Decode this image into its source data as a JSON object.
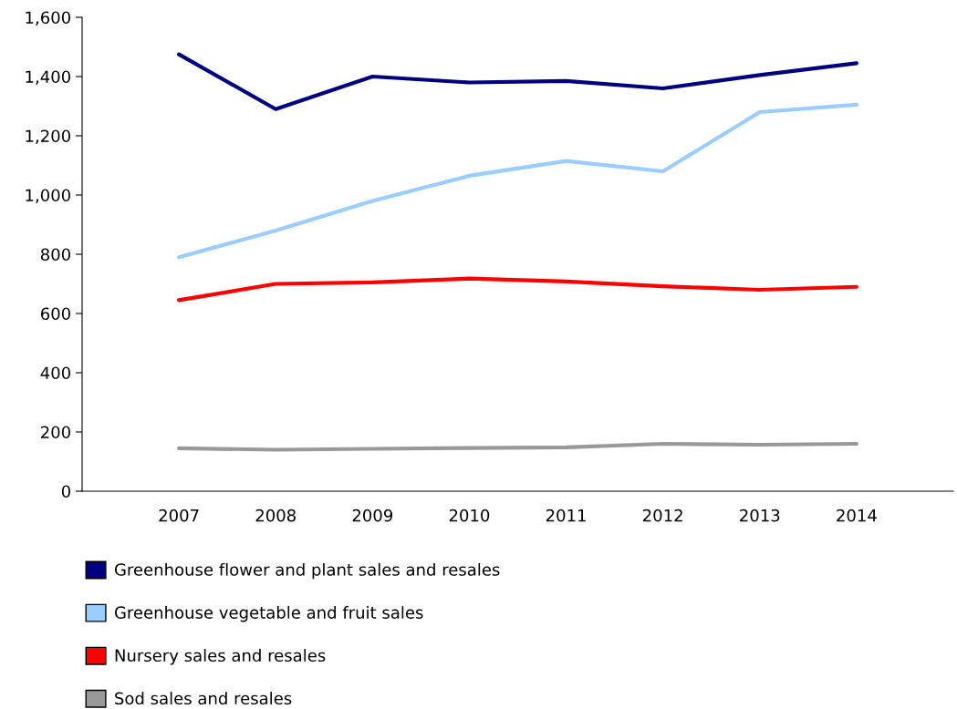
{
  "chart_data": {
    "type": "line",
    "categories": [
      "2007",
      "2008",
      "2009",
      "2010",
      "2011",
      "2012",
      "2013",
      "2014"
    ],
    "series": [
      {
        "name": "Greenhouse flower and plant sales and resales",
        "color": "#000080",
        "values": [
          1475,
          1290,
          1400,
          1380,
          1385,
          1360,
          1405,
          1445
        ]
      },
      {
        "name": "Greenhouse vegetable and fruit sales",
        "color": "#99ccff",
        "values": [
          790,
          880,
          980,
          1065,
          1115,
          1080,
          1280,
          1305
        ]
      },
      {
        "name": "Nursery sales and resales",
        "color": "#ff0000",
        "values": [
          645,
          700,
          705,
          718,
          708,
          692,
          680,
          690
        ]
      },
      {
        "name": "Sod sales and resales",
        "color": "#999999",
        "values": [
          145,
          140,
          143,
          146,
          148,
          160,
          157,
          160
        ]
      }
    ],
    "ylim": [
      0,
      1600
    ],
    "yticks": [
      {
        "value": 0,
        "label": "0"
      },
      {
        "value": 200,
        "label": "200"
      },
      {
        "value": 400,
        "label": "400"
      },
      {
        "value": 600,
        "label": "600"
      },
      {
        "value": 800,
        "label": "800"
      },
      {
        "value": 1000,
        "label": "1,000"
      },
      {
        "value": 1200,
        "label": "1,200"
      },
      {
        "value": 1400,
        "label": "1,400"
      },
      {
        "value": 1600,
        "label": "1,600"
      }
    ],
    "grid": false,
    "legend": "bottom",
    "marker": "none",
    "line_style": "solid"
  }
}
